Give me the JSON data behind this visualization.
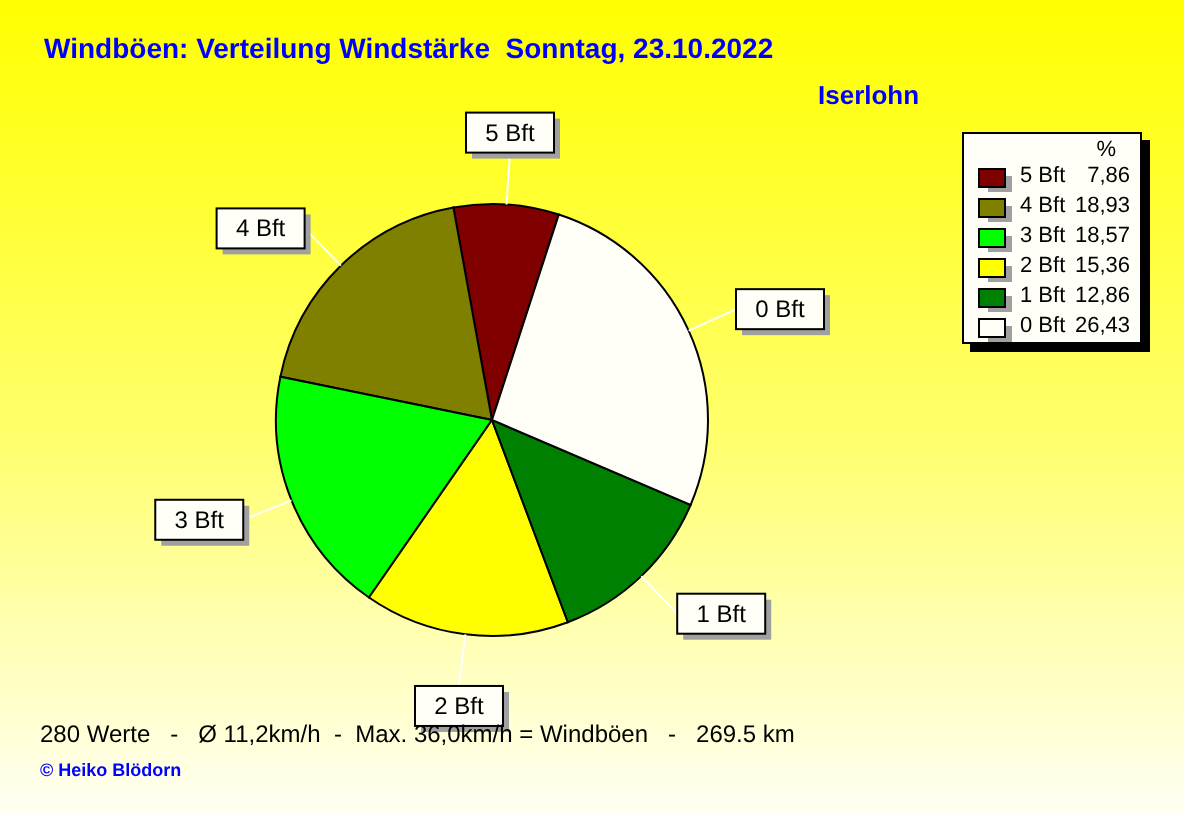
{
  "chart_data": {
    "type": "pie",
    "title": "Windböen: Verteilung Windstärke  Sonntag, 23.10.2022",
    "subtitle": "Iserlohn",
    "legend_title": "%",
    "categories": [
      "5 Bft",
      "4 Bft",
      "3 Bft",
      "2 Bft",
      "1 Bft",
      "0 Bft"
    ],
    "values": [
      7.86,
      18.93,
      18.57,
      15.36,
      12.86,
      26.43
    ],
    "value_labels": [
      "7,86",
      "18,93",
      "18,57",
      "15,36",
      "12,86",
      "26,43"
    ],
    "colors": [
      "#800000",
      "#808000",
      "#00ff00",
      "#ffff00",
      "#008000",
      "#fffff8"
    ],
    "legend": "top right",
    "annotations": [
      "280 Werte   -   Ø 11,2km/h  -  Max. 36,0km/h = Windböen   -   269.5 km",
      "© Heiko Blödorn"
    ]
  }
}
